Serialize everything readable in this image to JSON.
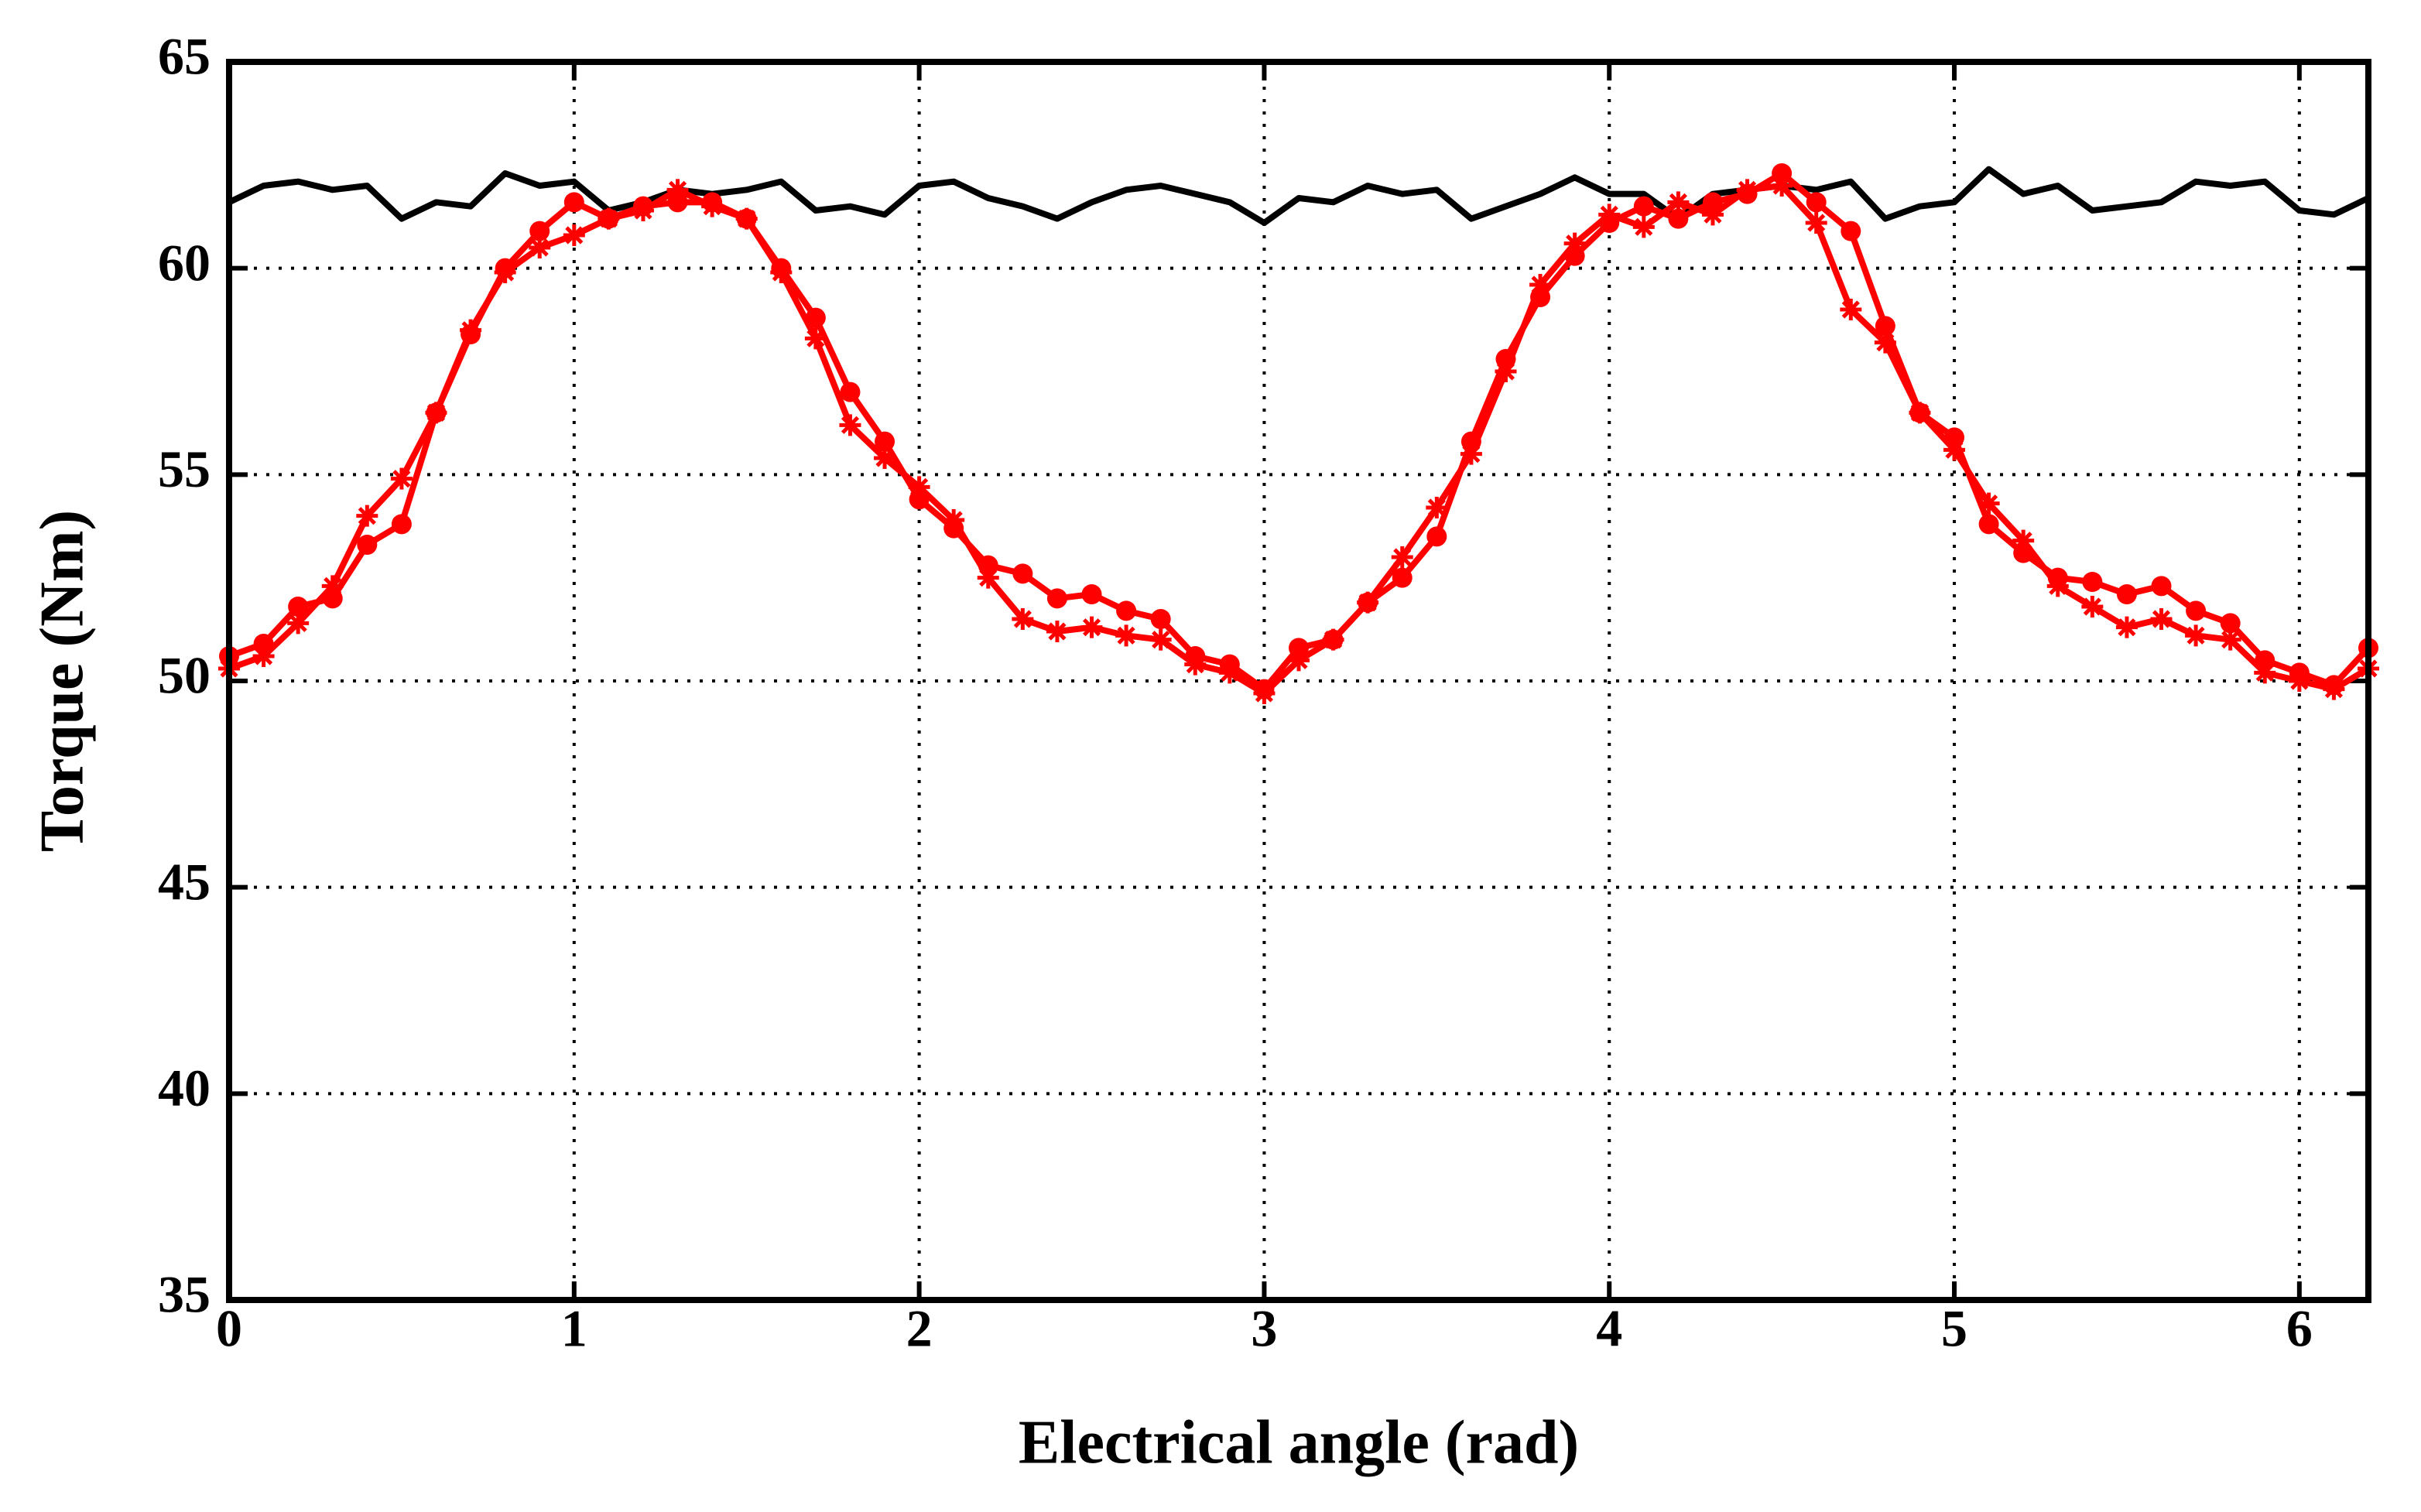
{
  "chart_data": {
    "type": "line",
    "xlabel": "Electrical angle (rad)",
    "ylabel": "Torque (Nm)",
    "x": [
      0,
      0.1,
      0.2,
      0.3,
      0.4,
      0.5,
      0.6,
      0.7,
      0.8,
      0.9,
      1.0,
      1.1,
      1.2,
      1.3,
      1.4,
      1.5,
      1.6,
      1.7,
      1.8,
      1.9,
      2.0,
      2.1,
      2.2,
      2.3,
      2.4,
      2.5,
      2.6,
      2.7,
      2.8,
      2.9,
      3.0,
      3.1,
      3.2,
      3.3,
      3.4,
      3.5,
      3.6,
      3.7,
      3.8,
      3.9,
      4.0,
      4.1,
      4.2,
      4.3,
      4.4,
      4.5,
      4.6,
      4.7,
      4.8,
      4.9,
      5.0,
      5.1,
      5.2,
      5.3,
      5.4,
      5.5,
      5.6,
      5.7,
      5.8,
      5.9,
      6.0,
      6.1,
      6.2
    ],
    "series": [
      {
        "color": "#000000",
        "marker": "none",
        "values": [
          61.6,
          62.0,
          62.1,
          61.9,
          62.0,
          61.2,
          61.6,
          61.5,
          62.3,
          62.0,
          62.1,
          61.4,
          61.6,
          61.9,
          61.8,
          61.9,
          62.1,
          61.4,
          61.5,
          61.3,
          62.0,
          62.1,
          61.7,
          61.5,
          61.2,
          61.6,
          61.9,
          62.0,
          61.8,
          61.6,
          61.1,
          61.7,
          61.6,
          62.0,
          61.8,
          61.9,
          61.2,
          61.5,
          61.8,
          62.2,
          61.8,
          61.8,
          61.2,
          61.8,
          61.9,
          62.0,
          61.9,
          62.1,
          61.2,
          61.5,
          61.6,
          62.4,
          61.8,
          62.0,
          61.4,
          61.5,
          61.6,
          62.1,
          62.0,
          62.1,
          61.4,
          61.3,
          61.7
        ]
      },
      {
        "color": "#ff0000",
        "marker": "circle",
        "values": [
          50.6,
          50.9,
          51.8,
          52.0,
          53.3,
          53.8,
          56.5,
          58.4,
          60.0,
          60.9,
          61.6,
          61.2,
          61.5,
          61.6,
          61.6,
          61.2,
          60.0,
          58.8,
          57.0,
          55.8,
          54.4,
          53.7,
          52.8,
          52.6,
          52.0,
          52.1,
          51.7,
          51.5,
          50.6,
          50.4,
          49.8,
          50.8,
          51.0,
          51.9,
          52.5,
          53.5,
          55.8,
          57.8,
          59.3,
          60.3,
          61.1,
          61.5,
          61.2,
          61.6,
          61.8,
          62.3,
          61.6,
          60.9,
          58.6,
          56.5,
          55.9,
          53.8,
          53.1,
          52.5,
          52.4,
          52.1,
          52.3,
          51.7,
          51.4,
          50.5,
          50.2,
          49.9,
          50.8
        ]
      },
      {
        "color": "#ff0000",
        "marker": "star",
        "values": [
          50.3,
          50.6,
          51.4,
          52.3,
          54.0,
          54.9,
          56.5,
          58.5,
          59.9,
          60.5,
          60.8,
          61.2,
          61.4,
          61.9,
          61.5,
          61.2,
          59.9,
          58.3,
          56.2,
          55.4,
          54.7,
          53.9,
          52.5,
          51.5,
          51.2,
          51.3,
          51.1,
          51.0,
          50.4,
          50.2,
          49.7,
          50.5,
          51.0,
          51.9,
          53.0,
          54.2,
          55.5,
          57.5,
          59.6,
          60.6,
          61.3,
          61.0,
          61.6,
          61.3,
          61.9,
          62.0,
          61.1,
          59.0,
          58.2,
          56.5,
          55.6,
          54.3,
          53.4,
          52.3,
          51.8,
          51.3,
          51.5,
          51.1,
          51.0,
          50.2,
          50.0,
          49.8,
          50.3
        ]
      }
    ],
    "xlim": [
      0,
      6.2
    ],
    "xticks": [
      0,
      1,
      2,
      3,
      4,
      5,
      6
    ],
    "ylim": [
      35,
      65
    ],
    "yticks": [
      35,
      40,
      45,
      50,
      55,
      60,
      65
    ],
    "grid": true
  }
}
